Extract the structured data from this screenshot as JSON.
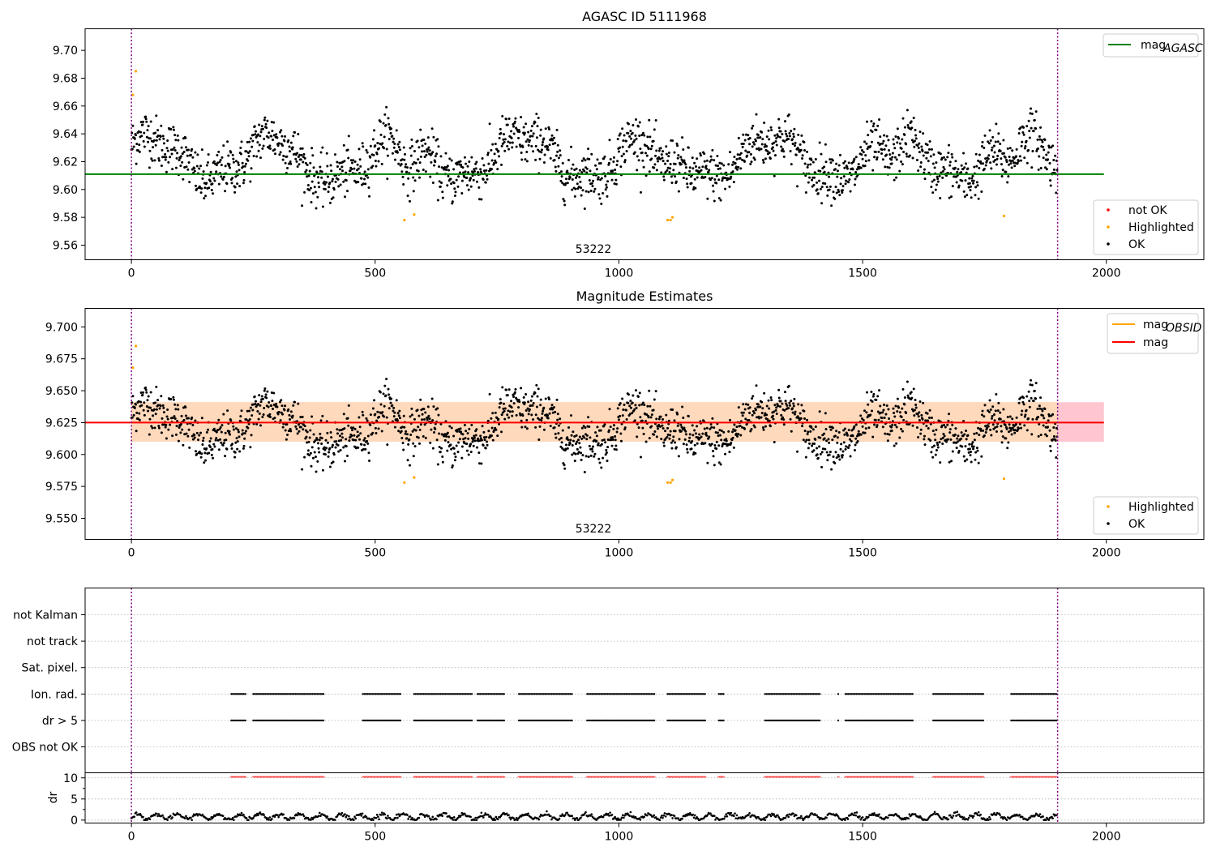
{
  "chart_data": [
    {
      "type": "scatter",
      "title": "AGASC ID 5111968",
      "xlabel": "",
      "ylabel": "",
      "xlim": [
        -95,
        2200
      ],
      "ylim": [
        9.5495,
        9.7155
      ],
      "xticks": [
        0,
        500,
        1000,
        1500,
        2000
      ],
      "yticks": [
        9.56,
        9.58,
        9.6,
        9.62,
        9.64,
        9.66,
        9.68,
        9.7
      ],
      "ytick_labels": [
        "9.56",
        "9.58",
        "9.60",
        "9.62",
        "9.64",
        "9.66",
        "9.68",
        "9.70"
      ],
      "annotation": "53222",
      "lines": [
        {
          "name": "mag_AGASC",
          "y": 9.611,
          "x": [
            -95,
            1995
          ],
          "color": "#008000"
        }
      ],
      "vlines": [
        0,
        1900
      ],
      "legend_top": [
        {
          "label": "mag",
          "sub": "AGASC",
          "color": "#008000"
        }
      ],
      "legend_bottom": [
        {
          "label": "not OK",
          "color": "#ff0000"
        },
        {
          "label": "Highlighted",
          "color": "#ffa500"
        },
        {
          "label": "OK",
          "color": "#000000"
        }
      ],
      "series_note": "Black OK points: ~1900 samples spanning x=0..1900, y between 9.585 and 9.665 with slow oscillation; orange highlighted points at x≈3,9 (y≈9.668,9.685), 560 (9.578), 580 (9.582), 1100-1110 (9.578), 1790 (9.581)."
    },
    {
      "type": "scatter",
      "title": "Magnitude Estimates",
      "xlabel": "",
      "ylabel": "",
      "xlim": [
        -95,
        2200
      ],
      "ylim": [
        9.5335,
        9.7145
      ],
      "xticks": [
        0,
        500,
        1000,
        1500,
        2000
      ],
      "yticks": [
        9.55,
        9.575,
        9.6,
        9.625,
        9.65,
        9.675,
        9.7
      ],
      "ytick_labels": [
        "9.550",
        "9.575",
        "9.600",
        "9.625",
        "9.650",
        "9.675",
        "9.700"
      ],
      "annotation": "53222",
      "lines": [
        {
          "name": "mag",
          "y": 9.625,
          "color": "#ff0000"
        },
        {
          "name": "mag_OBSID",
          "y": 9.625,
          "color": "#ffa500"
        }
      ],
      "bands": [
        {
          "y": [
            9.61,
            9.641
          ],
          "x": [
            0,
            1995
          ],
          "color": "#ffc0cb"
        },
        {
          "y": [
            9.61,
            9.641
          ],
          "x": [
            0,
            1900
          ],
          "color": "#ffdab9"
        }
      ],
      "vlines": [
        0,
        1900
      ],
      "legend_top": [
        {
          "label": "mag",
          "sub": "OBSID",
          "color": "#ffa500"
        },
        {
          "label": "mag",
          "sub": "",
          "color": "#ff0000"
        }
      ],
      "legend_bottom": [
        {
          "label": "Highlighted",
          "color": "#ffa500"
        },
        {
          "label": "OK",
          "color": "#000000"
        }
      ]
    },
    {
      "type": "scatter",
      "title": "",
      "xlim": [
        -95,
        2200
      ],
      "xticks": [
        0,
        500,
        1000,
        1500,
        2000
      ],
      "categories": [
        "OBS not OK",
        "dr > 5",
        "Ion. rad.",
        "Sat. pixel.",
        "not track",
        "not Kalman"
      ],
      "flag_segments": [
        [
          205,
          235
        ],
        [
          250,
          395
        ],
        [
          475,
          555
        ],
        [
          580,
          700
        ],
        [
          710,
          765
        ],
        [
          795,
          905
        ],
        [
          935,
          1075
        ],
        [
          1100,
          1180
        ],
        [
          1205,
          1215
        ],
        [
          1300,
          1415
        ],
        [
          1450,
          1453
        ],
        [
          1465,
          1605
        ],
        [
          1645,
          1750
        ],
        [
          1805,
          1900
        ]
      ],
      "vlines": [
        0,
        1900
      ]
    },
    {
      "type": "line",
      "ylabel": "dr",
      "xlim": [
        -95,
        2200
      ],
      "ylim": [
        -0.7,
        11.2
      ],
      "yticks": [
        0,
        5,
        10
      ],
      "threshold": 10,
      "xticks": [
        0,
        500,
        1000,
        1500,
        2000
      ],
      "series_note": "dr values oscillating between ~0 and ~1.8 across x=0..1900; red markers at y=10 on flagged segments."
    }
  ]
}
